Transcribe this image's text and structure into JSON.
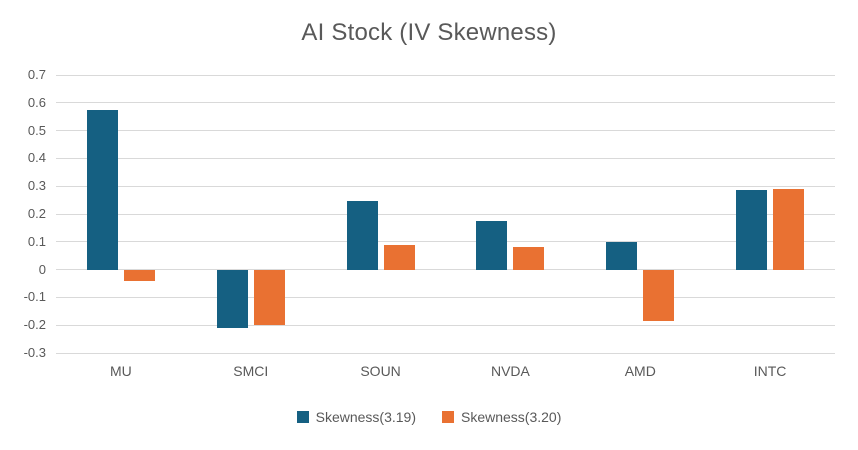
{
  "chart_data": {
    "type": "bar",
    "title": "AI Stock (IV Skewness)",
    "categories": [
      "MU",
      "SMCI",
      "SOUN",
      "NVDA",
      "AMD",
      "INTC"
    ],
    "series": [
      {
        "name": "Skewness(3.19)",
        "color": "#156082",
        "values": [
          0.575,
          -0.21,
          0.245,
          0.175,
          0.1,
          0.285
        ]
      },
      {
        "name": "Skewness(3.20)",
        "color": "#E97132",
        "values": [
          -0.04,
          -0.2,
          0.09,
          0.08,
          -0.185,
          0.29
        ]
      }
    ],
    "ylim": [
      -0.3,
      0.7
    ],
    "ytick_step": 0.1,
    "ytick_labels": [
      "0.7",
      "0.6",
      "0.5",
      "0.4",
      "0.3",
      "0.2",
      "0.1",
      "0",
      "-0.1",
      "-0.2",
      "-0.3"
    ],
    "grid": true,
    "legend_position": "bottom",
    "xlabel": "",
    "ylabel": ""
  },
  "colors": {
    "series1": "#156082",
    "series2": "#E97132",
    "gridline": "#d9d9d9",
    "text": "#595959",
    "background": "#ffffff"
  }
}
